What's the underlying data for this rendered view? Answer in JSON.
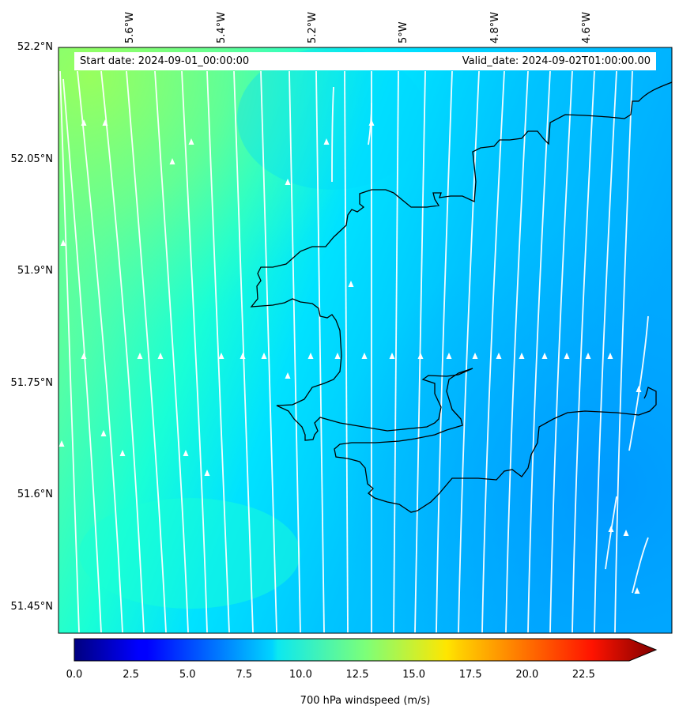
{
  "header": {
    "start_date": "Start date: 2024-09-01_00:00:00",
    "valid_date": "Valid_date: 2024-09-02T01:00:00.00"
  },
  "map": {
    "lat_labels": [
      "52.2°N",
      "52.05°N",
      "51.9°N",
      "51.75°N",
      "51.6°N",
      "51.45°N"
    ],
    "lon_labels": [
      "5.6°W",
      "5.4°W",
      "5.2°W",
      "5°W",
      "4.8°W",
      "4.6°W"
    ],
    "field": "700 hPa windspeed",
    "streamline_color": "#ffffff",
    "coastline_color": "#000000"
  },
  "colorbar": {
    "label": "700 hPa windspeed (m/s)",
    "ticks": [
      "0.0",
      "2.5",
      "5.0",
      "7.5",
      "10.0",
      "12.5",
      "15.0",
      "17.5",
      "20.0",
      "22.5"
    ],
    "range": [
      0,
      24.5
    ],
    "extend": "max",
    "colormap": "jet"
  }
}
